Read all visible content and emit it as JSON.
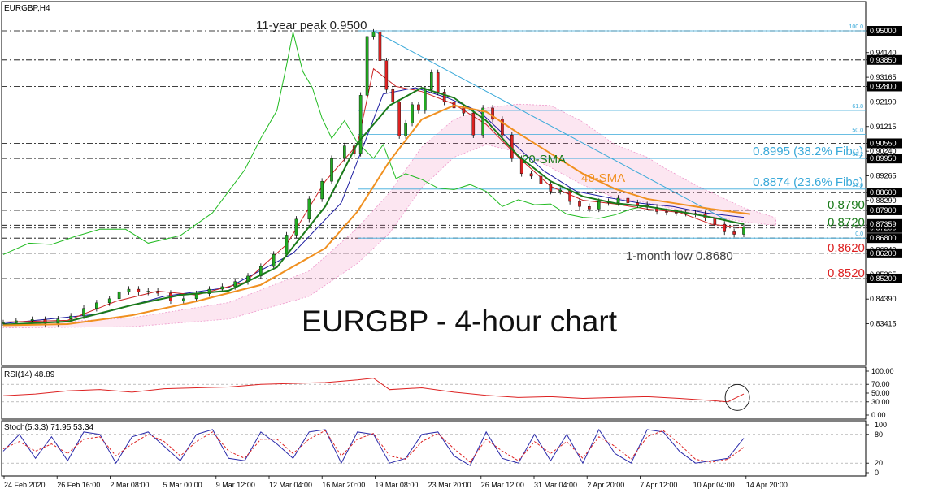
{
  "symbol_label": "EURGBP,H4",
  "chart_title": "EURGBP - 4-hour chart",
  "chart_data": [
    {
      "type": "candlestick",
      "title": "EURGBP - 4-hour chart",
      "ylim": [
        0.832,
        0.952
      ],
      "y_ticks": [
        "0.95000",
        "0.94140",
        "0.93850",
        "0.93165",
        "0.92800",
        "0.92190",
        "0.91215",
        "0.90550",
        "0.90240",
        "0.89950",
        "0.89265",
        "0.88600",
        "0.88290",
        "0.87900",
        "0.87315",
        "0.87200",
        "0.86800",
        "0.86340",
        "0.86200",
        "0.85365",
        "0.85200",
        "0.84390",
        "0.83415"
      ],
      "highlighted_ticks": [
        0.95,
        0.9385,
        0.928,
        0.9055,
        0.8995,
        0.886,
        0.879,
        0.8731,
        0.872,
        0.868,
        0.862,
        0.852
      ],
      "x_ticks": [
        "24 Feb 2020",
        "26 Feb 16:00",
        "2 Mar 08:00",
        "5 Mar 00:00",
        "9 Mar 12:00",
        "12 Mar 04:00",
        "16 Mar 20:00",
        "19 Mar 08:00",
        "23 Mar 20:00",
        "26 Mar 12:00",
        "31 Mar 04:00",
        "2 Apr 20:00",
        "7 Apr 12:00",
        "10 Apr 04:00",
        "14 Apr 20:00"
      ],
      "close_path": [
        [
          0,
          0.8345
        ],
        [
          4,
          0.8353
        ],
        [
          9,
          0.8358
        ],
        [
          13,
          0.8343
        ],
        [
          17,
          0.836
        ],
        [
          21,
          0.8372
        ],
        [
          25,
          0.8402
        ],
        [
          29,
          0.8424
        ],
        [
          33,
          0.844
        ],
        [
          36,
          0.8468
        ],
        [
          39,
          0.8478
        ],
        [
          42,
          0.8466
        ],
        [
          45,
          0.847
        ],
        [
          48,
          0.8462
        ],
        [
          52,
          0.8432
        ],
        [
          56,
          0.844
        ],
        [
          60,
          0.846
        ],
        [
          64,
          0.8478
        ],
        [
          68,
          0.8488
        ],
        [
          72,
          0.8508
        ],
        [
          76,
          0.853
        ],
        [
          80,
          0.8568
        ],
        [
          84,
          0.8616
        ],
        [
          88,
          0.8692
        ],
        [
          91,
          0.8755
        ],
        [
          95,
          0.8835
        ],
        [
          99,
          0.8905
        ],
        [
          102,
          0.8995
        ],
        [
          106,
          0.9045
        ],
        [
          109,
          0.9015
        ],
        [
          111,
          0.9245
        ],
        [
          113,
          0.9478
        ],
        [
          115,
          0.9495
        ],
        [
          117,
          0.9382
        ],
        [
          119,
          0.9268
        ],
        [
          121,
          0.9218
        ],
        [
          123,
          0.9085
        ],
        [
          125,
          0.9135
        ],
        [
          127,
          0.9208
        ],
        [
          129,
          0.9185
        ],
        [
          131,
          0.9268
        ],
        [
          133,
          0.9335
        ],
        [
          135,
          0.9258
        ],
        [
          137,
          0.9218
        ],
        [
          140,
          0.9195
        ],
        [
          143,
          0.9175
        ],
        [
          146,
          0.9088
        ],
        [
          149,
          0.9195
        ],
        [
          152,
          0.915
        ],
        [
          155,
          0.9088
        ],
        [
          158,
          0.8995
        ],
        [
          161,
          0.8935
        ],
        [
          164,
          0.8925
        ],
        [
          167,
          0.8895
        ],
        [
          170,
          0.8865
        ],
        [
          173,
          0.887
        ],
        [
          176,
          0.8825
        ],
        [
          179,
          0.8805
        ],
        [
          182,
          0.8795
        ],
        [
          185,
          0.8825
        ],
        [
          188,
          0.882
        ],
        [
          191,
          0.8838
        ],
        [
          194,
          0.882
        ],
        [
          197,
          0.8812
        ],
        [
          200,
          0.8802
        ],
        [
          203,
          0.8785
        ],
        [
          206,
          0.8782
        ],
        [
          209,
          0.878
        ],
        [
          212,
          0.8778
        ],
        [
          215,
          0.8775
        ],
        [
          218,
          0.876
        ],
        [
          221,
          0.8735
        ],
        [
          224,
          0.8705
        ],
        [
          227,
          0.8695
        ],
        [
          230,
          0.8725
        ]
      ],
      "series": [
        {
          "name": "20-SMA",
          "color": "#1a7a1a",
          "values": [
            [
              0,
              0.8338
            ],
            [
              20,
              0.835
            ],
            [
              40,
              0.8415
            ],
            [
              55,
              0.8455
            ],
            [
              70,
              0.8472
            ],
            [
              85,
              0.8565
            ],
            [
              100,
              0.8805
            ],
            [
              110,
              0.9055
            ],
            [
              120,
              0.9205
            ],
            [
              130,
              0.9275
            ],
            [
              140,
              0.9235
            ],
            [
              150,
              0.9145
            ],
            [
              160,
              0.9005
            ],
            [
              170,
              0.8905
            ],
            [
              180,
              0.8845
            ],
            [
              190,
              0.8818
            ],
            [
              200,
              0.8805
            ],
            [
              210,
              0.8785
            ],
            [
              220,
              0.8762
            ],
            [
              230,
              0.8735
            ]
          ]
        },
        {
          "name": "40-SMA",
          "color": "#f09020",
          "values": [
            [
              0,
              0.8335
            ],
            [
              20,
              0.834
            ],
            [
              40,
              0.8375
            ],
            [
              60,
              0.843
            ],
            [
              80,
              0.8495
            ],
            [
              100,
              0.864
            ],
            [
              110,
              0.8785
            ],
            [
              120,
              0.8985
            ],
            [
              130,
              0.915
            ],
            [
              140,
              0.9205
            ],
            [
              150,
              0.918
            ],
            [
              160,
              0.9095
            ],
            [
              170,
              0.9015
            ],
            [
              180,
              0.8935
            ],
            [
              190,
              0.8875
            ],
            [
              200,
              0.8835
            ],
            [
              210,
              0.8815
            ],
            [
              220,
              0.8795
            ],
            [
              232,
              0.8775
            ]
          ]
        }
      ],
      "support_resistance": [
        {
          "label": "0.8790",
          "value": 0.879,
          "color": "#1a7a1a"
        },
        {
          "label": "0.8720",
          "value": 0.872,
          "color": "#1a7a1a"
        },
        {
          "label": "0.8620",
          "value": 0.862,
          "color": "#dd2222"
        },
        {
          "label": "0.8520",
          "value": 0.852,
          "color": "#dd2222"
        }
      ],
      "fibonacci": {
        "levels": [
          {
            "label": "100.0",
            "value": 0.95
          },
          {
            "label": "61.8",
            "value": 0.9185
          },
          {
            "label": "50.0",
            "value": 0.909
          },
          {
            "label": "38.2",
            "value": 0.8995
          },
          {
            "label": "23.6",
            "value": 0.8874
          },
          {
            "label": "0.0",
            "value": 0.868
          }
        ],
        "annotations": [
          {
            "label": "0.8995 (38.2% Fibo)",
            "value": 0.8995
          },
          {
            "label": "0.8874 (23.6% Fibo)",
            "value": 0.8874
          }
        ]
      },
      "annotations": [
        "11-year peak 0.9500",
        "20-SMA",
        "40-SMA",
        "1-month low 0.8680"
      ],
      "price_label_current": "0.87359"
    },
    {
      "type": "line",
      "title": "RSI(14) 48.89",
      "ylim": [
        0,
        100
      ],
      "y_ticks": [
        "100.00",
        "70.00",
        "50.00",
        "30.00",
        "0.00"
      ],
      "series": [
        {
          "name": "RSI(14)",
          "color": "#dd2222",
          "values": [
            [
              0,
              44
            ],
            [
              10,
              48
            ],
            [
              20,
              55
            ],
            [
              30,
              58
            ],
            [
              40,
              52
            ],
            [
              50,
              60
            ],
            [
              60,
              62
            ],
            [
              70,
              64
            ],
            [
              80,
              70
            ],
            [
              90,
              72
            ],
            [
              100,
              74
            ],
            [
              110,
              80
            ],
            [
              115,
              84
            ],
            [
              120,
              58
            ],
            [
              130,
              62
            ],
            [
              140,
              52
            ],
            [
              150,
              45
            ],
            [
              160,
              40
            ],
            [
              170,
              42
            ],
            [
              180,
              38
            ],
            [
              190,
              40
            ],
            [
              200,
              42
            ],
            [
              210,
              38
            ],
            [
              220,
              33
            ],
            [
              225,
              30
            ],
            [
              230,
              48
            ]
          ]
        }
      ]
    },
    {
      "type": "line",
      "title": "Stoch(5,3,3) 71.95 53.34",
      "ylim": [
        0,
        100
      ],
      "y_ticks": [
        "100",
        "80",
        "20",
        "0"
      ],
      "series": [
        {
          "name": "Stoch(5,3,3) %K",
          "color": "#2a2aaa",
          "values": [
            [
              0,
              45
            ],
            [
              5,
              80
            ],
            [
              10,
              30
            ],
            [
              15,
              75
            ],
            [
              20,
              25
            ],
            [
              25,
              85
            ],
            [
              30,
              80
            ],
            [
              35,
              20
            ],
            [
              40,
              75
            ],
            [
              45,
              85
            ],
            [
              50,
              55
            ],
            [
              55,
              25
            ],
            [
              60,
              80
            ],
            [
              65,
              90
            ],
            [
              70,
              30
            ],
            [
              75,
              25
            ],
            [
              80,
              85
            ],
            [
              85,
              60
            ],
            [
              90,
              30
            ],
            [
              95,
              85
            ],
            [
              100,
              90
            ],
            [
              105,
              20
            ],
            [
              110,
              85
            ],
            [
              115,
              80
            ],
            [
              120,
              20
            ],
            [
              125,
              30
            ],
            [
              130,
              80
            ],
            [
              135,
              85
            ],
            [
              140,
              35
            ],
            [
              145,
              15
            ],
            [
              150,
              85
            ],
            [
              155,
              30
            ],
            [
              160,
              20
            ],
            [
              165,
              80
            ],
            [
              170,
              25
            ],
            [
              175,
              80
            ],
            [
              180,
              20
            ],
            [
              185,
              90
            ],
            [
              190,
              40
            ],
            [
              195,
              20
            ],
            [
              200,
              90
            ],
            [
              205,
              85
            ],
            [
              210,
              45
            ],
            [
              215,
              20
            ],
            [
              220,
              25
            ],
            [
              225,
              30
            ],
            [
              230,
              72
            ]
          ]
        },
        {
          "name": "Stoch(5,3,3) %D",
          "color": "#dd2222",
          "values": [
            [
              0,
              50
            ],
            [
              5,
              65
            ],
            [
              10,
              45
            ],
            [
              15,
              60
            ],
            [
              20,
              40
            ],
            [
              25,
              70
            ],
            [
              30,
              75
            ],
            [
              35,
              35
            ],
            [
              40,
              60
            ],
            [
              45,
              80
            ],
            [
              50,
              65
            ],
            [
              55,
              35
            ],
            [
              60,
              65
            ],
            [
              65,
              85
            ],
            [
              70,
              45
            ],
            [
              75,
              30
            ],
            [
              80,
              70
            ],
            [
              85,
              70
            ],
            [
              90,
              40
            ],
            [
              95,
              70
            ],
            [
              100,
              88
            ],
            [
              105,
              35
            ],
            [
              110,
              70
            ],
            [
              115,
              82
            ],
            [
              120,
              35
            ],
            [
              125,
              28
            ],
            [
              130,
              65
            ],
            [
              135,
              82
            ],
            [
              140,
              50
            ],
            [
              145,
              22
            ],
            [
              150,
              70
            ],
            [
              155,
              45
            ],
            [
              160,
              25
            ],
            [
              165,
              65
            ],
            [
              170,
              40
            ],
            [
              175,
              65
            ],
            [
              180,
              30
            ],
            [
              185,
              75
            ],
            [
              190,
              55
            ],
            [
              195,
              28
            ],
            [
              200,
              75
            ],
            [
              205,
              88
            ],
            [
              210,
              60
            ],
            [
              215,
              28
            ],
            [
              220,
              22
            ],
            [
              225,
              28
            ],
            [
              230,
              53
            ]
          ]
        }
      ]
    }
  ]
}
